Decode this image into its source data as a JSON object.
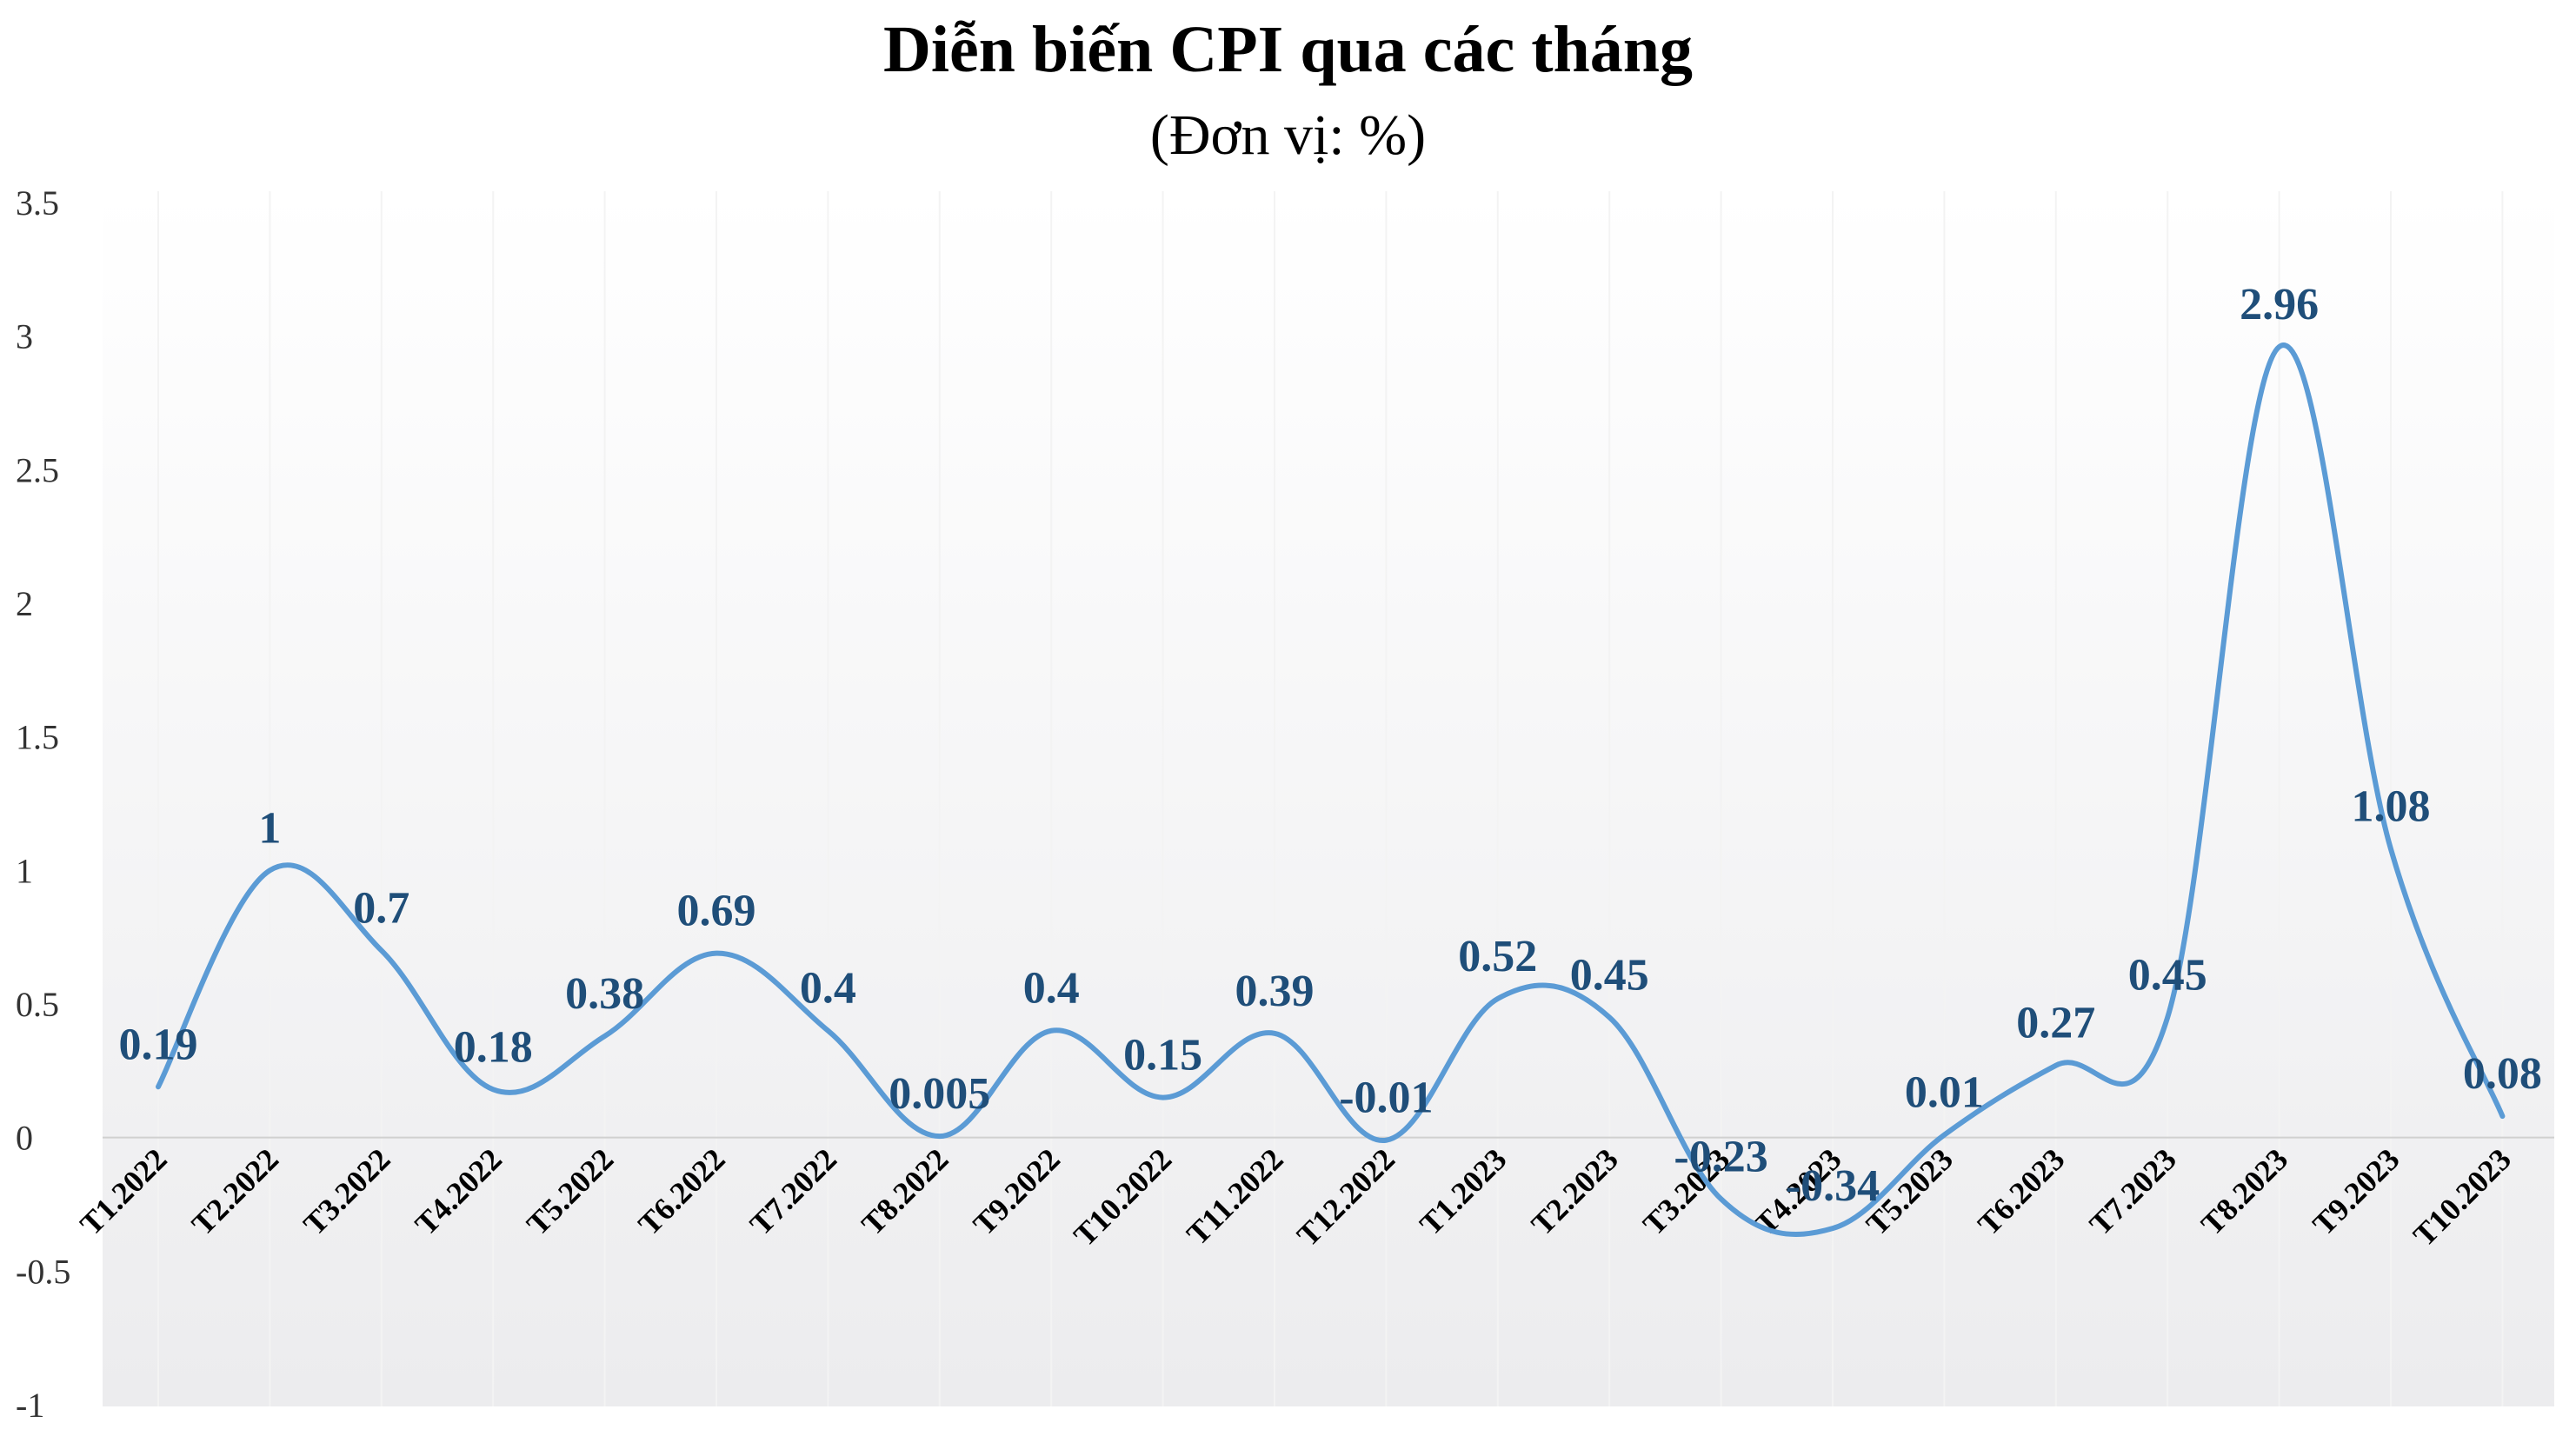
{
  "chart_data": {
    "type": "line",
    "title": "Diễn biến CPI qua các tháng",
    "subtitle": "(Đơn vị: %)",
    "xlabel": "",
    "ylabel": "",
    "ylim": [
      -1,
      3.5
    ],
    "yticks": [
      "3.5",
      "3",
      "2.5",
      "2",
      "1.5",
      "1",
      "0.5",
      "0",
      "-0.5",
      "-1"
    ],
    "categories": [
      "T1.2022",
      "T2.2022",
      "T3.2022",
      "T4.2022",
      "T5.2022",
      "T6.2022",
      "T7.2022",
      "T8.2022",
      "T9.2022",
      "T10.2022",
      "T11.2022",
      "T12.2022",
      "T1.2023",
      "T2.2023",
      "T3.2023",
      "T4.2023",
      "T5.2023",
      "T6.2023",
      "T7.2023",
      "T8.2023",
      "T9.2023",
      "T10.2023"
    ],
    "values": [
      0.19,
      1,
      0.7,
      0.18,
      0.38,
      0.69,
      0.4,
      0.005,
      0.4,
      0.15,
      0.39,
      -0.01,
      0.52,
      0.45,
      -0.23,
      -0.34,
      0.01,
      0.27,
      0.45,
      2.96,
      1.08,
      0.08
    ],
    "data_labels": [
      "0.19",
      "1",
      "0.7",
      "0.18",
      "0.38",
      "0.69",
      "0.4",
      "0.005",
      "0.4",
      "0.15",
      "0.39",
      "-0.01",
      "0.52",
      "0.45",
      "-0.23",
      "-0.34",
      "0.01",
      "0.27",
      "0.45",
      "2.96",
      "1.08",
      "0.08"
    ],
    "grid": false,
    "legend": "none",
    "line_color": "#5b9bd5",
    "label_color": "#1f4e79"
  }
}
